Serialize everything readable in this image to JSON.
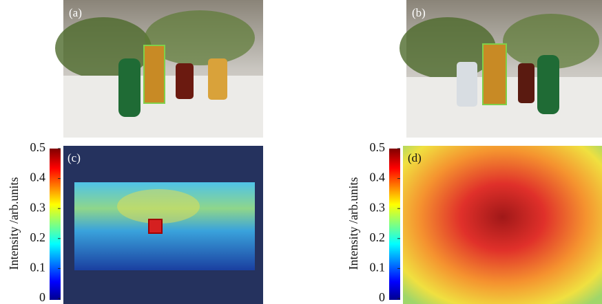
{
  "panels": [
    {
      "label": "(a)"
    },
    {
      "label": "(b)"
    },
    {
      "label": "(c)"
    },
    {
      "label": "(d)"
    }
  ],
  "colorbars": [
    {
      "axis_label": "Intensity /arb.units",
      "lim": [
        0,
        0.5
      ],
      "ticks": [
        0,
        0.1,
        0.2,
        0.3,
        0.4,
        0.5
      ]
    },
    {
      "axis_label": "Intensity /arb.units",
      "lim": [
        0,
        0.5
      ],
      "ticks": [
        0,
        0.1,
        0.2,
        0.3,
        0.4,
        0.5
      ]
    }
  ]
}
